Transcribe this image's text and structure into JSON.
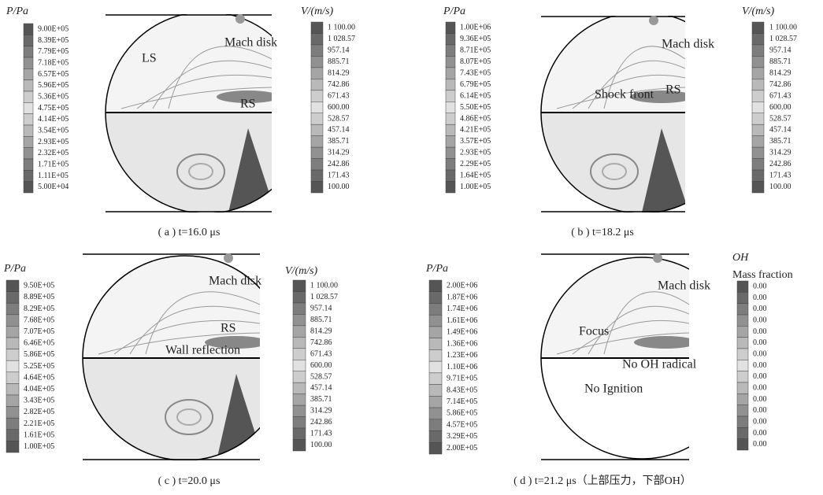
{
  "panels": [
    {
      "caption": "( a ) t=16.0 μs",
      "legend_left": {
        "title": "P/Pa",
        "labels": [
          "9.00E+05",
          "8.39E+05",
          "7.79E+05",
          "7.18E+05",
          "6.57E+05",
          "5.96E+05",
          "5.36E+05",
          "4.75E+05",
          "4.14E+05",
          "3.54E+05",
          "2.93E+05",
          "2.32E+05",
          "1.71E+05",
          "1.11E+05",
          "5.00E+04"
        ]
      },
      "legend_right": {
        "title": "V/(m/s)",
        "labels": [
          "1 100.00",
          "1 028.57",
          "957.14",
          "885.71",
          "814.29",
          "742.86",
          "671.43",
          "600.00",
          "528.57",
          "457.14",
          "385.71",
          "314.29",
          "242.86",
          "171.43",
          "100.00"
        ]
      },
      "annotations": [
        "LS",
        "Mach disk",
        "RS"
      ]
    },
    {
      "caption": "( b ) t=18.2 μs",
      "legend_left": {
        "title": "P/Pa",
        "labels": [
          "1.00E+06",
          "9.36E+05",
          "8.71E+05",
          "8.07E+05",
          "7.43E+05",
          "6.79E+05",
          "6.14E+05",
          "5.50E+05",
          "4.86E+05",
          "4.21E+05",
          "3.57E+05",
          "2.93E+05",
          "2.29E+05",
          "1.64E+05",
          "1.00E+05"
        ]
      },
      "legend_right": {
        "title": "V/(m/s)",
        "labels": [
          "1 100.00",
          "1 028.57",
          "957.14",
          "885.71",
          "814.29",
          "742.86",
          "671.43",
          "600.00",
          "528.57",
          "457.14",
          "385.71",
          "314.29",
          "242.86",
          "171.43",
          "100.00"
        ]
      },
      "annotations": [
        "Mach disk",
        "RS",
        "Shock front"
      ]
    },
    {
      "caption": "( c ) t=20.0 μs",
      "legend_left": {
        "title": "P/Pa",
        "labels": [
          "9.50E+05",
          "8.89E+05",
          "8.29E+05",
          "7.68E+05",
          "7.07E+05",
          "6.46E+05",
          "5.86E+05",
          "5.25E+05",
          "4.64E+05",
          "4.04E+05",
          "3.43E+05",
          "2.82E+05",
          "2.21E+05",
          "1.61E+05",
          "1.00E+05"
        ]
      },
      "legend_right": {
        "title": "V/(m/s)",
        "labels": [
          "1 100.00",
          "1 028.57",
          "957.14",
          "885.71",
          "814.29",
          "742.86",
          "671.43",
          "600.00",
          "528.57",
          "457.14",
          "385.71",
          "314.29",
          "242.86",
          "171.43",
          "100.00"
        ]
      },
      "annotations": [
        "Mach disk",
        "RS",
        "Wall reflection"
      ]
    },
    {
      "caption": "( d ) t=21.2 μs（上部压力，下部OH）",
      "legend_left": {
        "title": "P/Pa",
        "labels": [
          "2.00E+06",
          "1.87E+06",
          "1.74E+06",
          "1.61E+06",
          "1.49E+06",
          "1.36E+06",
          "1.23E+06",
          "1.10E+06",
          "9.71E+05",
          "8.43E+05",
          "7.14E+05",
          "5.86E+05",
          "4.57E+05",
          "3.29E+05",
          "2.00E+05"
        ]
      },
      "legend_right": {
        "title": "OH",
        "subtitle": "Mass fraction",
        "labels": [
          "0.00",
          "0.00",
          "0.00",
          "0.00",
          "0.00",
          "0.00",
          "0.00",
          "0.00",
          "0.00",
          "0.00",
          "0.00",
          "0.00",
          "0.00",
          "0.00",
          "0.00"
        ]
      },
      "annotations": [
        "Mach disk",
        "Focus",
        "No OH radical",
        "No Ignition"
      ]
    }
  ]
}
